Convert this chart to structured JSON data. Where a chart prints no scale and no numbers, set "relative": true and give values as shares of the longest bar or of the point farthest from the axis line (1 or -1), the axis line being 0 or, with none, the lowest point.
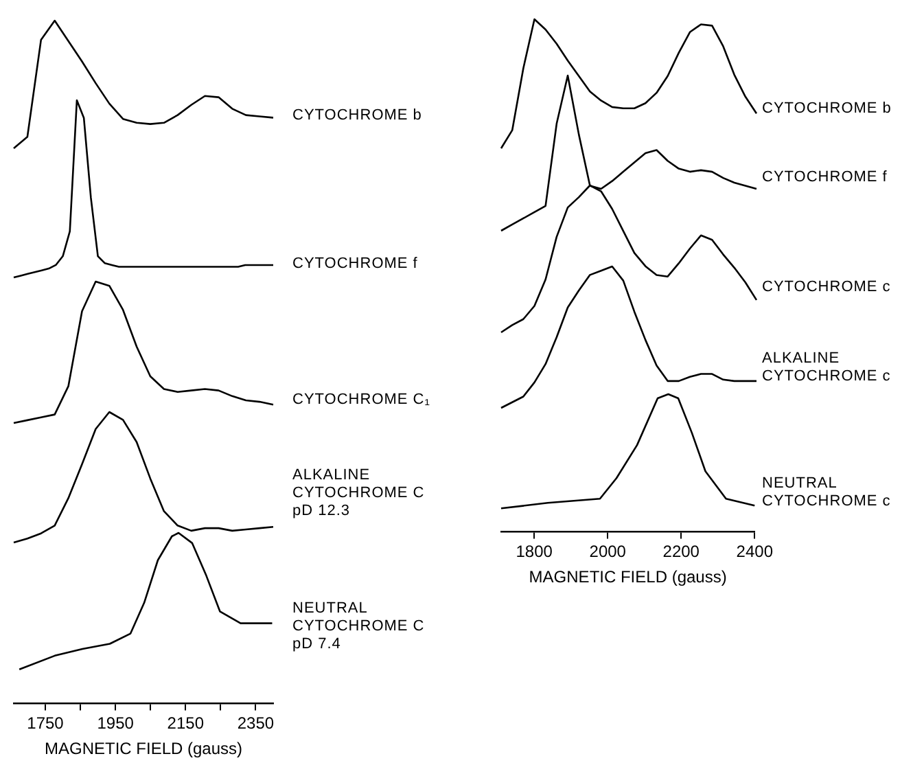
{
  "chart_data": [
    {
      "type": "line",
      "relative": true,
      "marker": "none",
      "tick_labels": false,
      "categories": [
        null,
        null,
        null,
        null,
        null,
        null,
        null,
        null,
        null,
        null,
        null,
        null,
        null,
        null,
        null,
        null,
        null,
        null,
        null,
        null
      ],
      "series": [
        {
          "name": "CYTOCHROME b",
          "color": "#000000",
          "values": [
            0,
            0.09,
            0.85,
            1,
            0.84,
            0.68,
            0.51,
            0.35,
            0.23,
            0.2,
            0.19,
            0.2,
            0.26,
            0.34,
            0.41,
            0.4,
            0.31,
            0.26,
            0.25,
            0.24
          ]
        }
      ]
    },
    {
      "type": "line",
      "relative": true,
      "marker": "none",
      "tick_labels": false,
      "categories": [
        null,
        null,
        null,
        null,
        null,
        null,
        null,
        null,
        null,
        null,
        null,
        null,
        null,
        null,
        null,
        null,
        null,
        null,
        null,
        null,
        null,
        null,
        null,
        null,
        null,
        null,
        null,
        null,
        null,
        null,
        null,
        null,
        null,
        null,
        null,
        null,
        null,
        null
      ],
      "series": [
        {
          "name": "CYTOCHROME f",
          "color": "#000000",
          "values": [
            0,
            0.01,
            0.02,
            0.03,
            0.04,
            0.05,
            0.07,
            0.12,
            0.26,
            1,
            0.9,
            0.45,
            0.12,
            0.08,
            0.07,
            0.06,
            0.06,
            0.06,
            0.06,
            0.06,
            0.06,
            0.06,
            0.06,
            0.06,
            0.06,
            0.06,
            0.06,
            0.06,
            0.06,
            0.06,
            0.06,
            0.06,
            0.06,
            0.07,
            0.07,
            0.07,
            0.07,
            0.07
          ]
        }
      ]
    },
    {
      "type": "line",
      "relative": true,
      "marker": "none",
      "tick_labels": false,
      "categories": [
        null,
        null,
        null,
        null,
        null,
        null,
        null,
        null,
        null,
        null,
        null,
        null,
        null,
        null,
        null,
        null,
        null,
        null,
        null,
        null
      ],
      "series": [
        {
          "name": "CYTOCHROME C₁",
          "color": "#000000",
          "values": [
            0,
            0.02,
            0.04,
            0.06,
            0.26,
            0.79,
            1,
            0.97,
            0.8,
            0.54,
            0.33,
            0.24,
            0.22,
            0.23,
            0.24,
            0.23,
            0.19,
            0.16,
            0.15,
            0.13
          ]
        }
      ]
    },
    {
      "type": "line",
      "relative": true,
      "marker": "none",
      "tick_labels": false,
      "categories": [
        null,
        null,
        null,
        null,
        null,
        null,
        null,
        null,
        null,
        null,
        null,
        null,
        null,
        null,
        null,
        null,
        null,
        null,
        null,
        null
      ],
      "series": [
        {
          "name": "ALKALINE\nCYTOCHROME C\npD 12.3",
          "color": "#000000",
          "values": [
            0,
            0.03,
            0.07,
            0.13,
            0.34,
            0.6,
            0.87,
            1,
            0.94,
            0.77,
            0.49,
            0.24,
            0.13,
            0.09,
            0.11,
            0.11,
            0.09,
            0.1,
            0.11,
            0.12
          ]
        }
      ]
    },
    {
      "type": "line",
      "relative": true,
      "marker": "none",
      "tick_labels": "x",
      "xlim": [
        1660,
        2400
      ],
      "xticks": [
        1750,
        {
          "value": 1850,
          "label": null
        },
        1950,
        {
          "value": 2050,
          "label": null
        },
        2150,
        {
          "value": 2250,
          "label": null
        },
        2350
      ],
      "xlabel": "MAGNETIC FIELD (gauss)",
      "series": [
        {
          "name": "NEUTRAL\nCYTOCHROME C\npD 7.4",
          "color": "#000000",
          "x": [
            1676,
            1777,
            1856,
            1934,
            1993,
            2032,
            2071,
            2111,
            2130,
            2169,
            2209,
            2248,
            2307,
            2397
          ],
          "values": [
            0.2,
            0.28,
            0.32,
            0.35,
            0.41,
            0.59,
            0.84,
            0.98,
            1,
            0.94,
            0.75,
            0.54,
            0.47,
            0.47
          ]
        }
      ]
    },
    {
      "type": "line",
      "relative": true,
      "marker": "none",
      "tick_labels": false,
      "categories": [
        null,
        null,
        null,
        null,
        null,
        null,
        null,
        null,
        null,
        null,
        null,
        null,
        null,
        null,
        null,
        null,
        null,
        null,
        null,
        null,
        null,
        null,
        null,
        null
      ],
      "series": [
        {
          "name": "CYTOCHROME b",
          "color": "#000000",
          "values": [
            0,
            0.14,
            0.62,
            1,
            0.92,
            0.81,
            0.68,
            0.56,
            0.44,
            0.37,
            0.32,
            0.31,
            0.31,
            0.35,
            0.43,
            0.56,
            0.74,
            0.9,
            0.96,
            0.95,
            0.79,
            0.57,
            0.4,
            0.27
          ]
        }
      ]
    },
    {
      "type": "line",
      "relative": true,
      "marker": "none",
      "tick_labels": false,
      "categories": [
        null,
        null,
        null,
        null,
        null,
        null,
        null,
        null,
        null,
        null,
        null,
        null,
        null,
        null,
        null,
        null,
        null,
        null,
        null,
        null,
        null,
        null,
        null,
        null
      ],
      "series": [
        {
          "name": "CYTOCHROME f",
          "color": "#000000",
          "values": [
            0,
            0.04,
            0.08,
            0.12,
            0.16,
            0.69,
            1,
            0.62,
            0.29,
            0.27,
            0.32,
            0.38,
            0.44,
            0.5,
            0.52,
            0.45,
            0.4,
            0.38,
            0.39,
            0.38,
            0.34,
            0.31,
            0.29,
            0.27
          ]
        }
      ]
    },
    {
      "type": "line",
      "relative": true,
      "marker": "none",
      "tick_labels": false,
      "categories": [
        null,
        null,
        null,
        null,
        null,
        null,
        null,
        null,
        null,
        null,
        null,
        null,
        null,
        null,
        null,
        null,
        null,
        null,
        null,
        null,
        null,
        null,
        null,
        null
      ],
      "series": [
        {
          "name": "CYTOCHROME c",
          "color": "#000000",
          "values": [
            0,
            0.05,
            0.09,
            0.18,
            0.36,
            0.65,
            0.85,
            0.92,
            1,
            0.96,
            0.84,
            0.69,
            0.54,
            0.45,
            0.39,
            0.38,
            0.47,
            0.57,
            0.66,
            0.63,
            0.53,
            0.44,
            0.34,
            0.22
          ]
        }
      ]
    },
    {
      "type": "line",
      "relative": true,
      "marker": "none",
      "tick_labels": false,
      "categories": [
        null,
        null,
        null,
        null,
        null,
        null,
        null,
        null,
        null,
        null,
        null,
        null,
        null,
        null,
        null,
        null,
        null,
        null,
        null,
        null,
        null,
        null,
        null,
        null
      ],
      "series": [
        {
          "name": "ALKALINE\nCYTOCHROME c",
          "color": "#000000",
          "values": [
            0,
            0.04,
            0.08,
            0.18,
            0.31,
            0.5,
            0.71,
            0.83,
            0.94,
            0.97,
            1,
            0.9,
            0.68,
            0.48,
            0.3,
            0.19,
            0.19,
            0.22,
            0.24,
            0.24,
            0.2,
            0.19,
            0.19,
            0.19
          ]
        }
      ]
    },
    {
      "type": "line",
      "relative": true,
      "marker": "none",
      "tick_labels": "x",
      "xlim": [
        1710,
        2400
      ],
      "xticks": [
        1800,
        2000,
        2200,
        2400
      ],
      "xlabel": "MAGNETIC FIELD (gauss)",
      "series": [
        {
          "name": "NEUTRAL\nCYTOCHROME c",
          "color": "#000000",
          "x": [
            1710,
            1837,
            1979,
            2024,
            2080,
            2136,
            2165,
            2192,
            2229,
            2266,
            2322,
            2400
          ],
          "values": [
            0.17,
            0.21,
            0.24,
            0.39,
            0.63,
            0.97,
            1,
            0.97,
            0.72,
            0.44,
            0.24,
            0.19
          ]
        }
      ]
    }
  ]
}
